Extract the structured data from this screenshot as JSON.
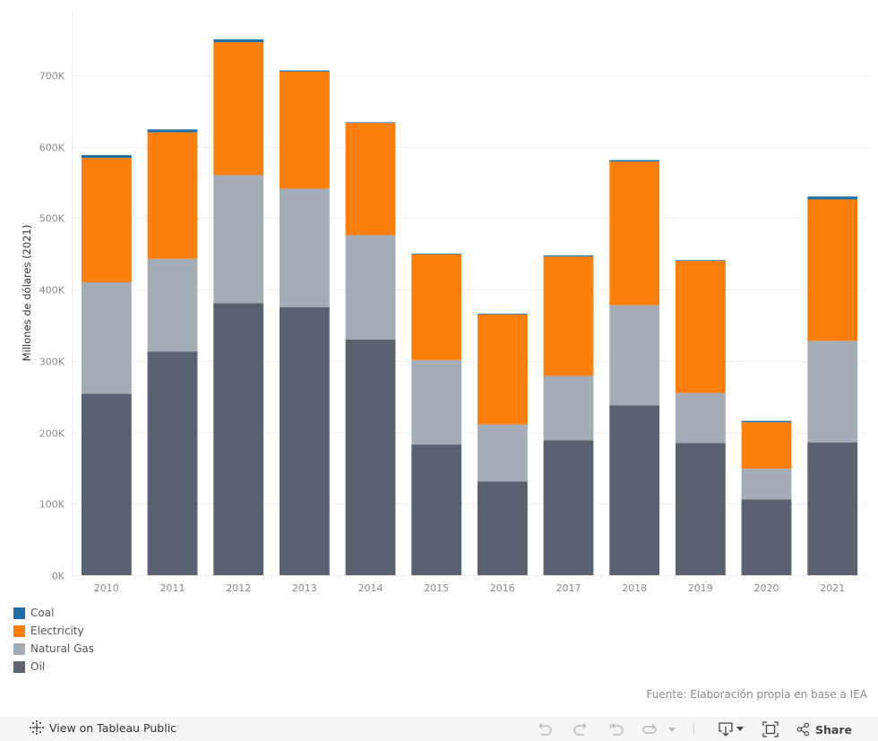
{
  "chart_data": {
    "type": "bar",
    "stacked": true,
    "title": "",
    "xlabel": "",
    "ylabel": "Millones de dólares (2021)",
    "ylim": [
      0,
      790
    ],
    "y_unit": "K",
    "yticks": [
      0,
      100,
      200,
      300,
      400,
      500,
      600,
      700
    ],
    "ytick_labels": [
      "0K",
      "100K",
      "200K",
      "300K",
      "400K",
      "500K",
      "600K",
      "700K"
    ],
    "grid": true,
    "categories": [
      "2010",
      "2011",
      "2012",
      "2013",
      "2014",
      "2015",
      "2016",
      "2017",
      "2018",
      "2019",
      "2020",
      "2021"
    ],
    "series": [
      {
        "name": "Oil",
        "color": "#5a6170",
        "values": [
          254,
          313,
          381,
          375,
          330,
          183,
          131,
          189,
          238,
          185,
          106,
          186
        ]
      },
      {
        "name": "Natural Gas",
        "color": "#a3acb7",
        "values": [
          156,
          130,
          179,
          166,
          146,
          118,
          80,
          90,
          140,
          70,
          43,
          142
        ]
      },
      {
        "name": "Electricity",
        "color": "#fc7f0d",
        "values": [
          174,
          177,
          186,
          164,
          157,
          148,
          154,
          167,
          201,
          185,
          65,
          198
        ]
      },
      {
        "name": "Coal",
        "color": "#1f6ea8",
        "values": [
          4,
          4,
          4,
          1.5,
          1,
          1,
          1,
          1.5,
          2,
          1,
          2,
          4
        ]
      }
    ],
    "legend": {
      "position": "bottom-left",
      "entries": [
        {
          "label": "Coal",
          "color": "#1f6ea8"
        },
        {
          "label": "Electricity",
          "color": "#fc7f0d"
        },
        {
          "label": "Natural Gas",
          "color": "#a3acb7"
        },
        {
          "label": "Oil",
          "color": "#5a6170"
        }
      ]
    }
  },
  "source_note": "Fuente: Elaboración propia en base a IEA",
  "toolbar": {
    "view_on_public": "View on Tableau Public",
    "undo": "undo-icon",
    "redo": "redo-icon",
    "revert": "revert-icon",
    "refresh": "refresh-icon",
    "download": "download-icon",
    "fullscreen": "fullscreen-icon",
    "share_label": "Share"
  }
}
